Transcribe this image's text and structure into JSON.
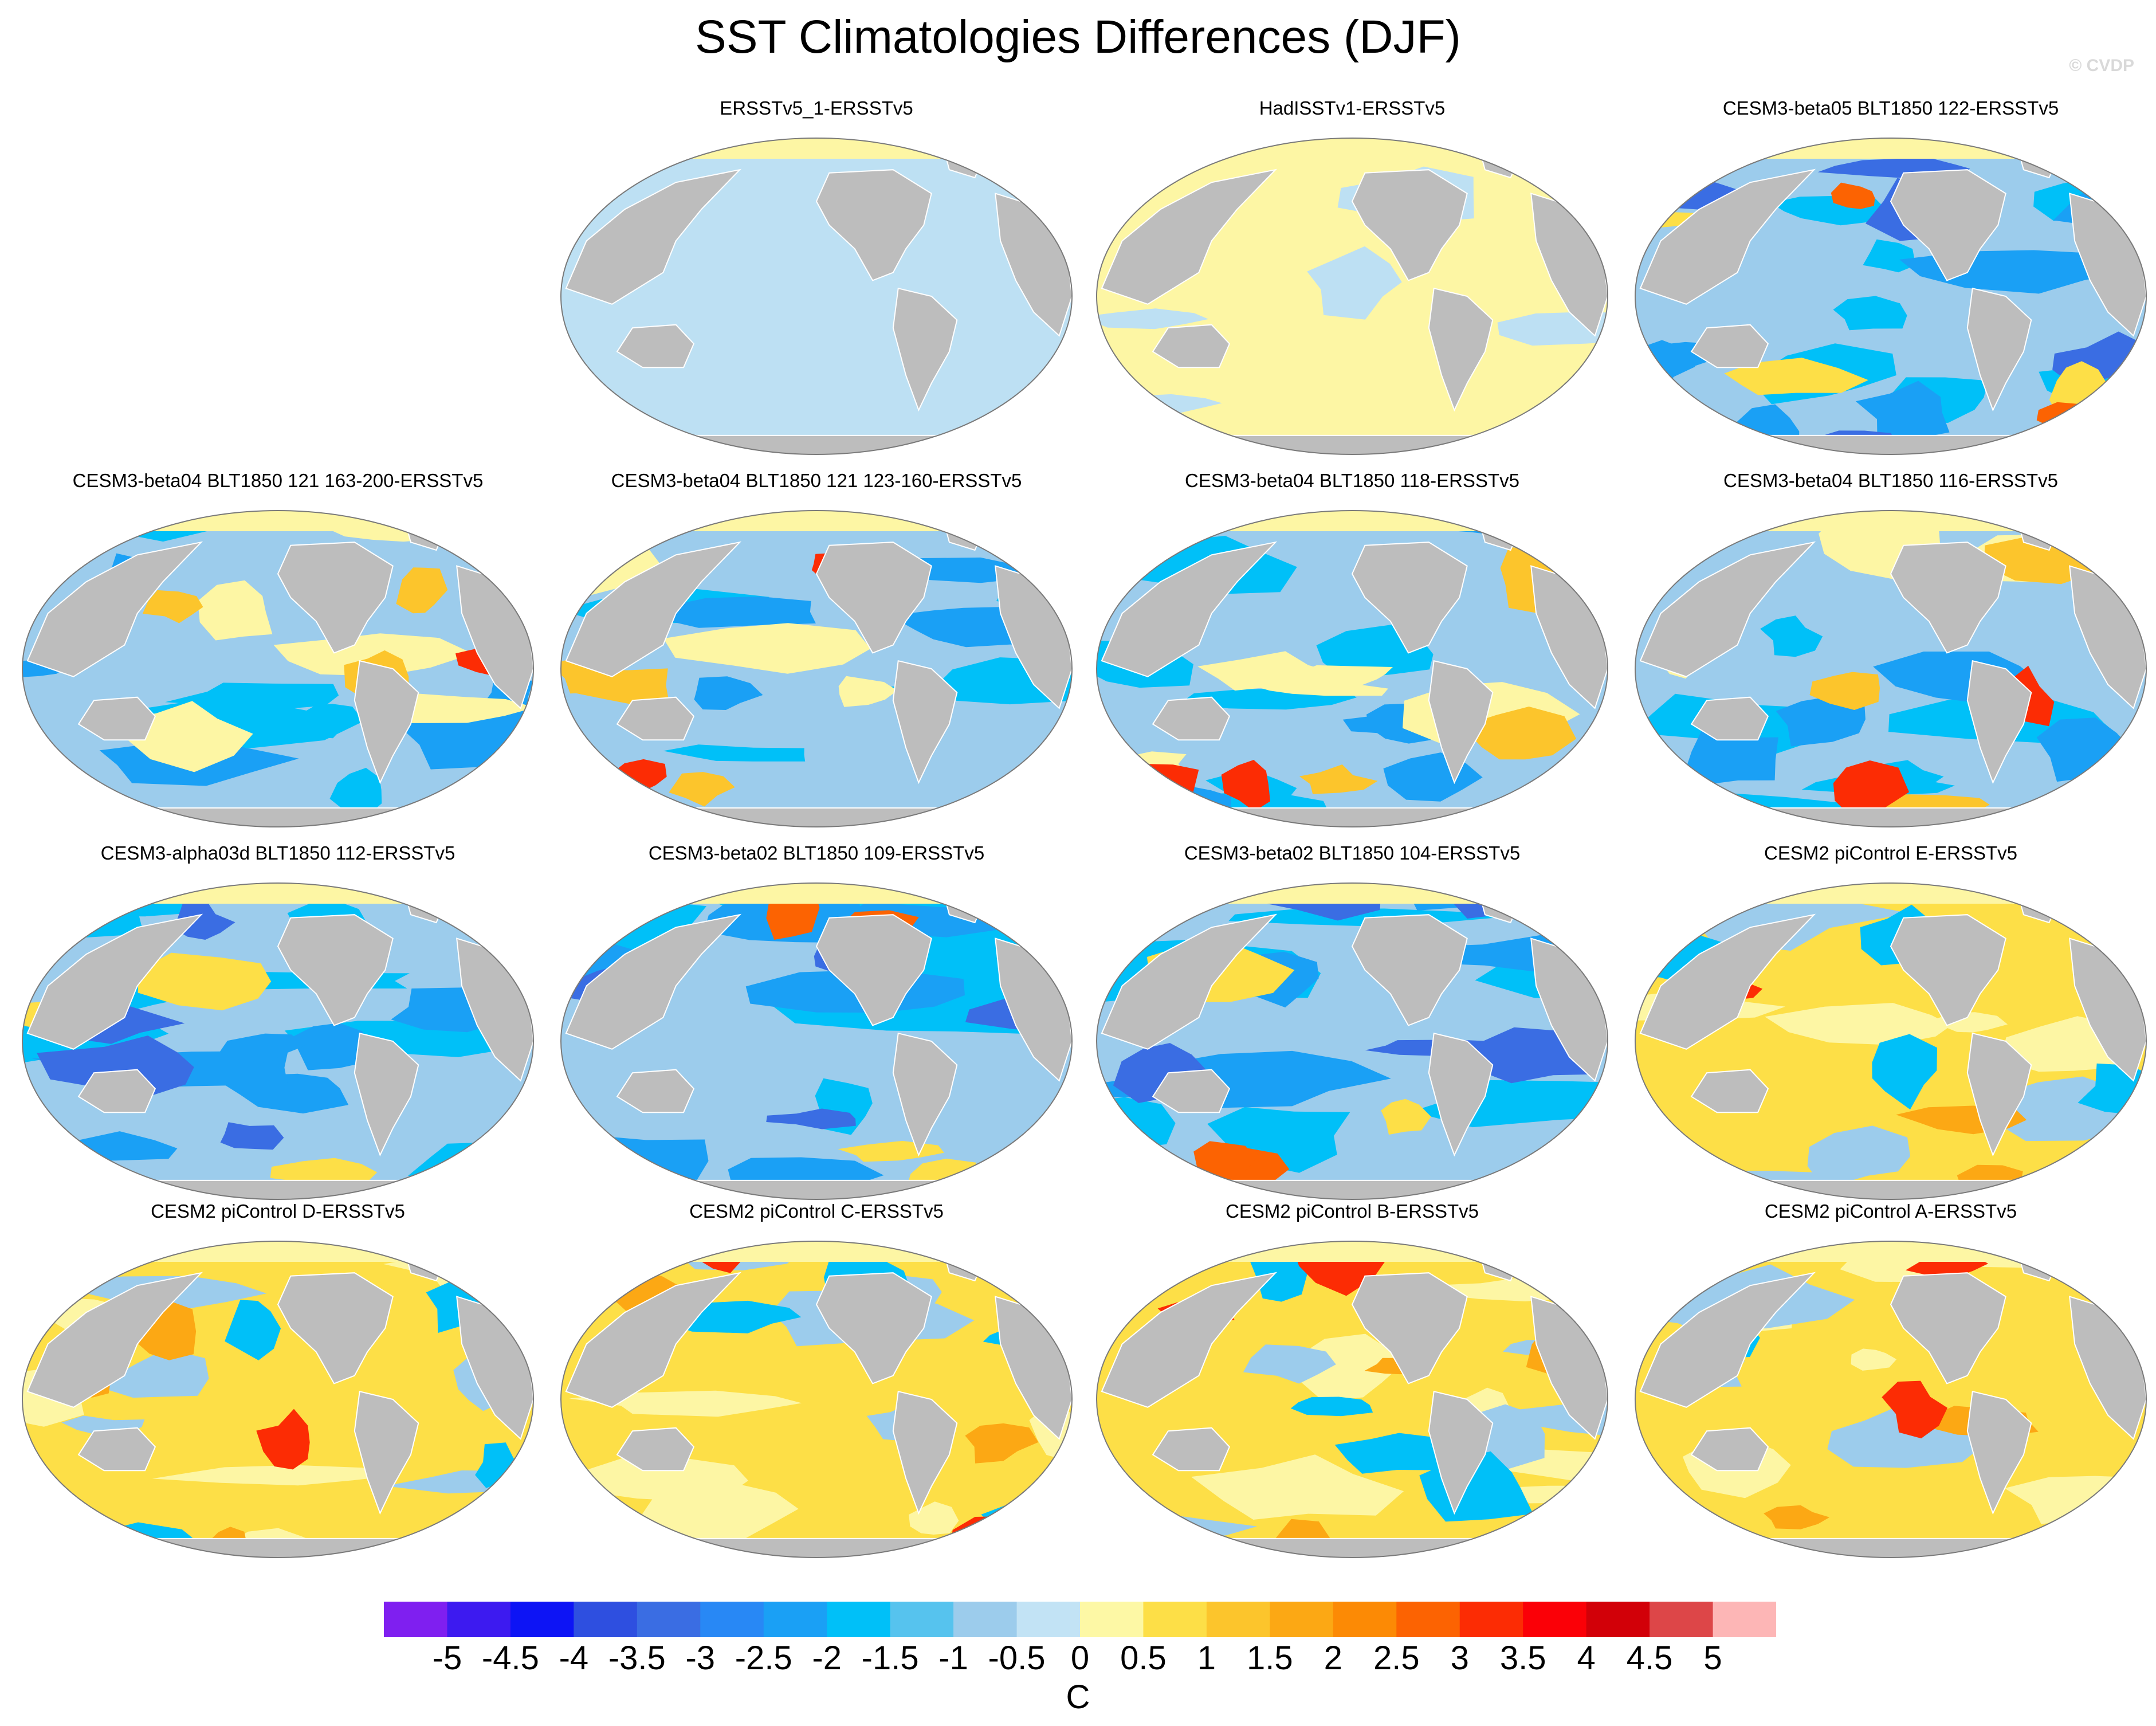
{
  "title": "SST Climatologies Differences (DJF)",
  "copyright": "© CVDP",
  "colors": {
    "land": "#bdbdbd",
    "ocean_light_blue": "#bde0f3",
    "light_yellow": "#fdf6a4",
    "coast": "#ffffff",
    "outline": "#7a7a7a"
  },
  "panels": [
    {
      "title": "ERSSTv5_1-ERSSTv5",
      "pattern": "blue"
    },
    {
      "title": "HadISSTv1-ERSSTv5",
      "pattern": "yellow"
    },
    {
      "title": "CESM3-beta05 BLT1850 122-ERSSTv5",
      "pattern": "cold"
    },
    {
      "title": "CESM3-beta04 BLT1850 121 163-200-ERSSTv5",
      "pattern": "mixed"
    },
    {
      "title": "CESM3-beta04 BLT1850 121 123-160-ERSSTv5",
      "pattern": "mixed"
    },
    {
      "title": "CESM3-beta04 BLT1850 118-ERSSTv5",
      "pattern": "mixed"
    },
    {
      "title": "CESM3-beta04 BLT1850 116-ERSSTv5",
      "pattern": "mixed"
    },
    {
      "title": "CESM3-alpha03d BLT1850 112-ERSSTv5",
      "pattern": "cold"
    },
    {
      "title": "CESM3-beta02 BLT1850 109-ERSSTv5",
      "pattern": "cold"
    },
    {
      "title": "CESM3-beta02 BLT1850 104-ERSSTv5",
      "pattern": "cold"
    },
    {
      "title": "CESM2 piControl E-ERSSTv5",
      "pattern": "warm"
    },
    {
      "title": "CESM2 piControl D-ERSSTv5",
      "pattern": "warm"
    },
    {
      "title": "CESM2 piControl C-ERSSTv5",
      "pattern": "warm"
    },
    {
      "title": "CESM2 piControl B-ERSSTv5",
      "pattern": "warm"
    },
    {
      "title": "CESM2 piControl A-ERSSTv5",
      "pattern": "warm"
    }
  ],
  "colorbar": {
    "labels": [
      "-5",
      "-4.5",
      "-4",
      "-3.5",
      "-3",
      "-2.5",
      "-2",
      "-1.5",
      "-1",
      "-0.5",
      "0",
      "0.5",
      "1",
      "1.5",
      "2",
      "2.5",
      "3",
      "3.5",
      "4",
      "4.5",
      "5"
    ],
    "colors": [
      "#7f1ff0",
      "#3d1af0",
      "#0d14f5",
      "#2e4fe0",
      "#3a6de3",
      "#2888f5",
      "#1aa0f5",
      "#00c0f8",
      "#56c3ee",
      "#9cccec",
      "#c2e3f5",
      "#fdf8a5",
      "#fddf47",
      "#fcc52c",
      "#fca814",
      "#fc8a05",
      "#fc6302",
      "#fc2c04",
      "#fb0007",
      "#d20008",
      "#dd4648",
      "#fdb6b6"
    ],
    "units": "C"
  }
}
